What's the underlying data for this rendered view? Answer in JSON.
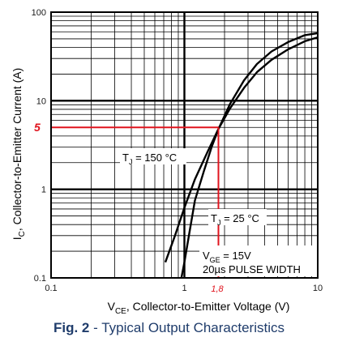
{
  "chart_data": {
    "type": "line",
    "xscale": "log",
    "yscale": "log",
    "xlim": [
      0.1,
      10
    ],
    "ylim": [
      0.1,
      100
    ],
    "x_ticks": [
      "0.1",
      "1",
      "10"
    ],
    "y_ticks": [
      "0.1",
      "1",
      "10",
      "100"
    ],
    "xlabel_main": "V",
    "xlabel_sub": "CE",
    "xlabel_rest": ", Collector-to-Emitter Voltage (V)",
    "ylabel_main": "I",
    "ylabel_sub": "C",
    "ylabel_rest": ",  Collector-to-Emitter Current (A)",
    "grid": true,
    "series": [
      {
        "points": [
          [
            0.72,
            0.15
          ],
          [
            0.85,
            0.3
          ],
          [
            1.0,
            0.62
          ],
          [
            1.2,
            1.3
          ],
          [
            1.5,
            2.7
          ],
          [
            1.8,
            4.8
          ],
          [
            2.2,
            8.2
          ],
          [
            2.8,
            14
          ],
          [
            3.5,
            21
          ],
          [
            4.5,
            29
          ],
          [
            6,
            38
          ],
          [
            8,
            47
          ],
          [
            10,
            52
          ]
        ]
      },
      {
        "points": [
          [
            0.95,
            0.1
          ],
          [
            1.0,
            0.15
          ],
          [
            1.1,
            0.35
          ],
          [
            1.2,
            0.75
          ],
          [
            1.4,
            1.6
          ],
          [
            1.6,
            3.0
          ],
          [
            1.8,
            4.8
          ],
          [
            2.2,
            9.2
          ],
          [
            2.8,
            17
          ],
          [
            3.5,
            26
          ],
          [
            4.5,
            36
          ],
          [
            6,
            46
          ],
          [
            8,
            55
          ],
          [
            10,
            58
          ]
        ]
      }
    ],
    "annotations": {
      "tj150_main": "T",
      "tj150_sub": "J",
      "tj150_rest": " = 150 °C",
      "tj25_main": "T",
      "tj25_sub": "J",
      "tj25_rest": " = 25 °C",
      "vge_main": "V",
      "vge_sub": "GE",
      "vge_rest": " = 15V",
      "pulse": "20µs PULSE WIDTH",
      "marker_y_label": "5",
      "marker_x_label": "1,8",
      "marker_x_value": 1.8,
      "marker_y_value": 5
    },
    "colors": {
      "curve": "#000000",
      "marker": "#e0141e",
      "tick_text": "#1a1a1a"
    }
  },
  "caption": {
    "bold": "Fig. 2",
    "rest": " - Typical Output Characteristics"
  }
}
